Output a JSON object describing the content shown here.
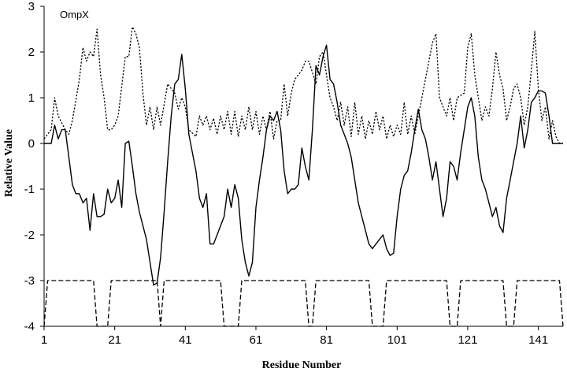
{
  "chart_data": {
    "type": "line",
    "title": "",
    "annotation": "OmpX",
    "xlabel": "Residue Number",
    "ylabel": "Relative Value",
    "xlim": [
      1,
      148
    ],
    "ylim": [
      -4,
      3
    ],
    "x_ticks": [
      1,
      21,
      41,
      61,
      81,
      101,
      121,
      141
    ],
    "x_tick_labels": [
      "1",
      "21",
      "41",
      "61",
      "81",
      "101",
      "121",
      "141"
    ],
    "y_ticks": [
      -4,
      -3,
      -2,
      -1,
      0,
      1,
      2,
      3
    ],
    "y_tick_labels": [
      "-4",
      "-3",
      "-2",
      "-1",
      "0",
      "1",
      "2",
      "3"
    ],
    "grid": false,
    "legend": "none",
    "series": [
      {
        "style": "dotted",
        "color": "#000000",
        "x": [
          1,
          3,
          4,
          5,
          7,
          8,
          9,
          11,
          12,
          13,
          14,
          15,
          16,
          17,
          18,
          19,
          20,
          21,
          22,
          24,
          25,
          26,
          27,
          28,
          29,
          30,
          31,
          32,
          33,
          34,
          36,
          38,
          39,
          40,
          41,
          42,
          44,
          45,
          46,
          47,
          48,
          49,
          50,
          51,
          52,
          53,
          54,
          55,
          56,
          57,
          58,
          59,
          60,
          61,
          62,
          63,
          64,
          65,
          66,
          67,
          68,
          69,
          70,
          71,
          72,
          74,
          75,
          76,
          78,
          79,
          80,
          81,
          82,
          83,
          84,
          85,
          86,
          87,
          88,
          89,
          90,
          91,
          92,
          93,
          94,
          95,
          96,
          97,
          98,
          99,
          100,
          101,
          102,
          103,
          104,
          105,
          106,
          107,
          108,
          109,
          110,
          111,
          112,
          113,
          115,
          116,
          117,
          118,
          120,
          121,
          122,
          123,
          124,
          125,
          126,
          127,
          128,
          129,
          130,
          131,
          132,
          133,
          134,
          135,
          136,
          137,
          138,
          139,
          140,
          141,
          142,
          143,
          144,
          145,
          146,
          147
        ],
        "values": [
          0.1,
          0.3,
          1.0,
          0.6,
          0.3,
          0.2,
          0.5,
          1.4,
          2.1,
          1.8,
          2.0,
          1.9,
          2.5,
          1.5,
          1.0,
          0.3,
          0.3,
          0.4,
          0.6,
          1.9,
          1.9,
          2.55,
          2.4,
          2.1,
          1.1,
          0.4,
          0.8,
          0.3,
          0.8,
          0.4,
          1.3,
          1.1,
          0.75,
          1.0,
          0.8,
          0.3,
          0.15,
          0.6,
          0.4,
          0.6,
          0.3,
          0.55,
          0.2,
          0.6,
          0.3,
          0.7,
          0.2,
          0.7,
          0.15,
          0.6,
          0.3,
          0.8,
          0.3,
          0.7,
          0.2,
          0.6,
          0.3,
          0.7,
          0.1,
          0.5,
          0.5,
          1.3,
          0.6,
          1.1,
          1.4,
          1.6,
          1.8,
          1.8,
          1.3,
          1.9,
          2.0,
          1.5,
          1.0,
          0.8,
          0.5,
          0.9,
          0.4,
          0.8,
          0.15,
          0.9,
          0.2,
          0.6,
          0.1,
          0.5,
          0.2,
          0.7,
          0.3,
          0.6,
          0.1,
          0.4,
          0.15,
          0.4,
          0.2,
          0.9,
          0.2,
          0.6,
          0.2,
          0.6,
          1.0,
          1.4,
          1.8,
          2.2,
          2.4,
          1.0,
          0.6,
          1.0,
          0.5,
          1.0,
          1.1,
          2.1,
          2.4,
          1.5,
          1.0,
          0.5,
          0.8,
          0.6,
          1.2,
          2.0,
          1.5,
          1.2,
          0.5,
          0.8,
          1.2,
          1.3,
          1.0,
          0.4,
          0.8,
          1.6,
          2.45,
          1.2,
          0.5,
          0.8,
          0.1,
          0.5,
          0.15,
          0.0
        ]
      },
      {
        "style": "solid",
        "color": "#000000",
        "x": [
          1,
          2,
          3,
          4,
          5,
          6,
          7,
          8,
          9,
          10,
          11,
          12,
          13,
          14,
          15,
          16,
          17,
          18,
          19,
          20,
          21,
          22,
          23,
          24,
          25,
          26,
          27,
          28,
          29,
          30,
          31,
          32,
          33,
          34,
          35,
          36,
          37,
          38,
          39,
          40,
          41,
          42,
          43,
          44,
          45,
          46,
          47,
          48,
          49,
          50,
          51,
          52,
          53,
          54,
          55,
          56,
          57,
          58,
          59,
          60,
          61,
          62,
          63,
          64,
          65,
          66,
          67,
          68,
          69,
          70,
          71,
          72,
          73,
          74,
          75,
          76,
          77,
          78,
          79,
          80,
          81,
          82,
          83,
          84,
          85,
          86,
          87,
          88,
          89,
          90,
          91,
          92,
          93,
          94,
          95,
          96,
          97,
          98,
          99,
          100,
          101,
          102,
          103,
          104,
          105,
          106,
          107,
          108,
          109,
          110,
          111,
          112,
          113,
          114,
          115,
          116,
          117,
          118,
          119,
          120,
          121,
          122,
          123,
          124,
          125,
          126,
          127,
          128,
          129,
          130,
          131,
          132,
          133,
          134,
          135,
          136,
          137,
          138,
          139,
          140,
          141,
          142,
          143,
          144,
          145,
          146,
          147,
          148
        ],
        "values": [
          0.0,
          0.0,
          0.0,
          0.4,
          0.1,
          0.3,
          0.3,
          -0.3,
          -0.9,
          -1.1,
          -1.1,
          -1.3,
          -1.2,
          -1.9,
          -1.1,
          -1.6,
          -1.6,
          -1.55,
          -1.0,
          -1.3,
          -1.2,
          -0.8,
          -1.4,
          0.0,
          0.05,
          -0.5,
          -1.1,
          -1.5,
          -1.8,
          -2.1,
          -2.6,
          -3.1,
          -3.05,
          -2.5,
          -1.5,
          -0.4,
          0.6,
          1.3,
          1.4,
          1.95,
          1.2,
          0.2,
          -0.2,
          -0.6,
          -1.2,
          -1.4,
          -1.1,
          -2.2,
          -2.2,
          -2.0,
          -1.8,
          -1.6,
          -1.0,
          -1.4,
          -0.9,
          -1.2,
          -2.1,
          -2.6,
          -2.9,
          -2.6,
          -1.4,
          -0.8,
          -0.3,
          0.3,
          0.6,
          0.5,
          0.7,
          0.3,
          -0.6,
          -1.1,
          -1.0,
          -1.0,
          -0.9,
          -0.1,
          -0.5,
          -0.8,
          0.3,
          1.7,
          1.5,
          1.9,
          2.15,
          1.4,
          1.3,
          0.9,
          0.4,
          0.2,
          0.0,
          -0.3,
          -0.8,
          -1.3,
          -1.6,
          -1.9,
          -2.2,
          -2.3,
          -2.2,
          -2.1,
          -2.0,
          -2.3,
          -2.45,
          -2.4,
          -1.6,
          -1.0,
          -0.7,
          -0.6,
          -0.2,
          0.3,
          0.75,
          0.3,
          0.1,
          -0.3,
          -0.8,
          -0.4,
          -1.0,
          -1.6,
          -1.2,
          -0.4,
          -0.5,
          -0.8,
          -0.2,
          0.3,
          0.8,
          1.0,
          0.6,
          -0.3,
          -0.8,
          -1.0,
          -1.3,
          -1.6,
          -1.4,
          -1.8,
          -1.95,
          -1.2,
          -0.8,
          -0.4,
          0.0,
          0.6,
          -0.1,
          0.3,
          0.9,
          1.0,
          1.15,
          1.15,
          1.1,
          0.6,
          0.0,
          0.0,
          0.0,
          0.0
        ]
      },
      {
        "style": "dashed",
        "color": "#000000",
        "x": [
          1,
          2,
          3,
          15,
          16,
          19,
          20,
          33,
          34,
          35,
          51,
          52,
          56,
          57,
          75,
          76,
          77,
          78,
          93,
          94,
          97,
          98,
          115,
          116,
          118,
          119,
          131,
          132,
          134,
          135,
          147,
          148
        ],
        "values": [
          -4,
          -3,
          -3,
          -3,
          -4,
          -4,
          -3,
          -3,
          -4,
          -3,
          -3,
          -4,
          -4,
          -3,
          -3,
          -4,
          -4,
          -3,
          -3,
          -4,
          -4,
          -3,
          -3,
          -4,
          -4,
          -3,
          -3,
          -4,
          -4,
          -3,
          -3,
          -4
        ]
      }
    ]
  }
}
